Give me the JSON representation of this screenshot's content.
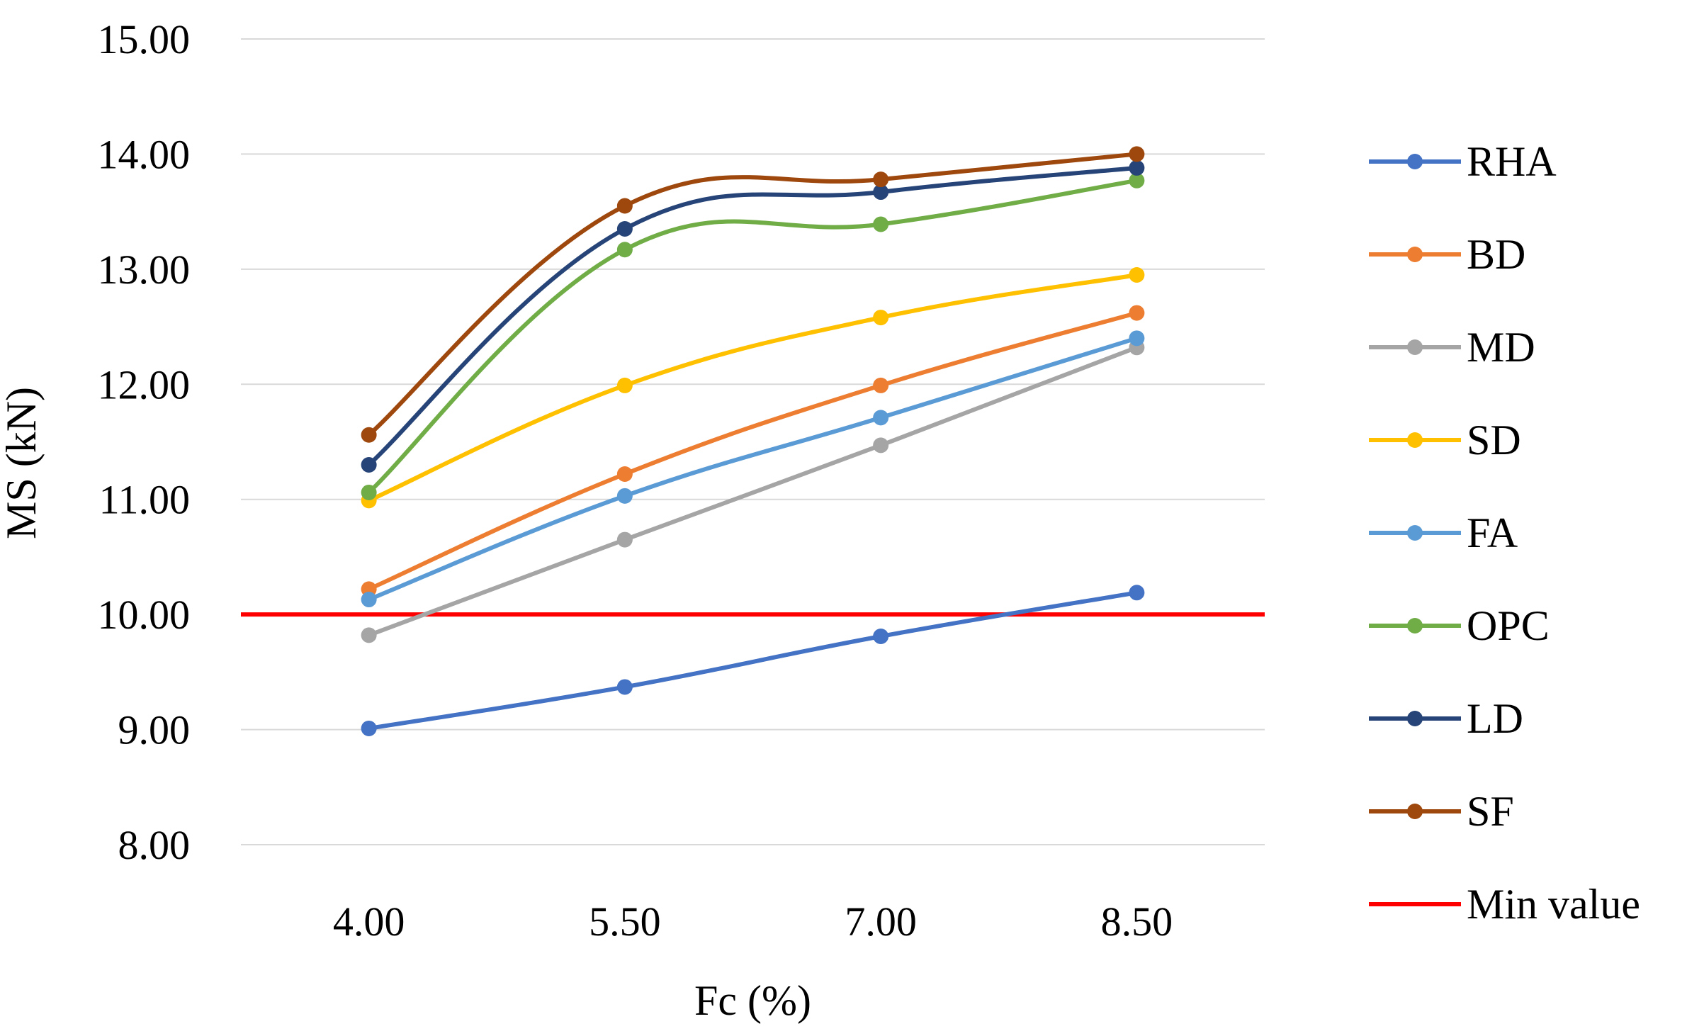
{
  "chart_data": {
    "type": "line",
    "title": "",
    "xlabel": "Fc (%)",
    "ylabel": "MS (kN)",
    "categories": [
      "4.00",
      "5.50",
      "7.00",
      "8.50"
    ],
    "ylim": [
      8,
      15
    ],
    "yticks": [
      "8.00",
      "9.00",
      "10.00",
      "11.00",
      "12.00",
      "13.00",
      "14.00",
      "15.00"
    ],
    "grid": "horizontal",
    "legend_position": "right",
    "series": [
      {
        "name": "RHA",
        "color": "#4472C4",
        "values": [
          9.01,
          9.37,
          9.81,
          10.19
        ]
      },
      {
        "name": "BD",
        "color": "#ED7D31",
        "values": [
          10.22,
          11.22,
          11.99,
          12.62
        ]
      },
      {
        "name": "MD",
        "color": "#A5A5A5",
        "values": [
          9.82,
          10.65,
          11.47,
          12.32
        ]
      },
      {
        "name": "SD",
        "color": "#FFC000",
        "values": [
          10.99,
          11.99,
          12.58,
          12.95
        ]
      },
      {
        "name": "FA",
        "color": "#5B9BD5",
        "values": [
          10.13,
          11.03,
          11.71,
          12.4
        ]
      },
      {
        "name": "OPC",
        "color": "#70AD47",
        "values": [
          11.06,
          13.17,
          13.39,
          13.77
        ]
      },
      {
        "name": "LD",
        "color": "#264478",
        "values": [
          11.3,
          13.35,
          13.67,
          13.88
        ]
      },
      {
        "name": "SF",
        "color": "#9E480E",
        "values": [
          11.56,
          13.55,
          13.78,
          14.0
        ]
      }
    ],
    "reference_line": {
      "name": "Min value",
      "value": 10.0,
      "color": "#FF0000"
    }
  }
}
